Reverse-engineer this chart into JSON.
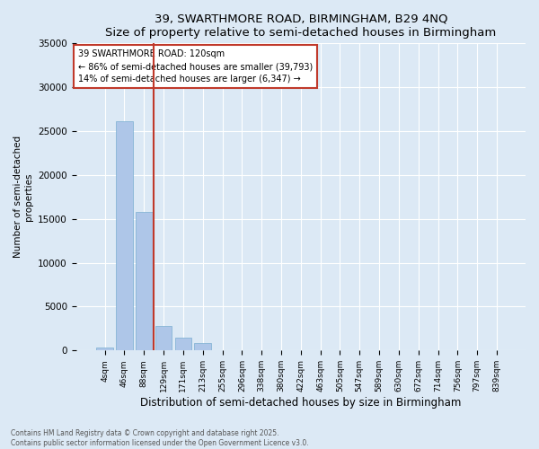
{
  "title1": "39, SWARTHMORE ROAD, BIRMINGHAM, B29 4NQ",
  "title2": "Size of property relative to semi-detached houses in Birmingham",
  "xlabel": "Distribution of semi-detached houses by size in Birmingham",
  "ylabel": "Number of semi-detached\nproperties",
  "categories": [
    "4sqm",
    "46sqm",
    "88sqm",
    "129sqm",
    "171sqm",
    "213sqm",
    "255sqm",
    "296sqm",
    "338sqm",
    "380sqm",
    "422sqm",
    "463sqm",
    "505sqm",
    "547sqm",
    "589sqm",
    "630sqm",
    "672sqm",
    "714sqm",
    "756sqm",
    "797sqm",
    "839sqm"
  ],
  "values": [
    300,
    26100,
    15800,
    2800,
    1500,
    900,
    0,
    0,
    0,
    0,
    0,
    0,
    0,
    0,
    0,
    0,
    0,
    0,
    0,
    0,
    0
  ],
  "bar_color": "#aec6e8",
  "bar_edge_color": "#7aaed0",
  "vline_position": 2.5,
  "vline_color": "#c0392b",
  "annotation_title": "39 SWARTHMORE ROAD: 120sqm",
  "annotation_line1": "← 86% of semi-detached houses are smaller (39,793)",
  "annotation_line2": "14% of semi-detached houses are larger (6,347) →",
  "annotation_box_color": "#c0392b",
  "ylim": [
    0,
    35000
  ],
  "yticks": [
    0,
    5000,
    10000,
    15000,
    20000,
    25000,
    30000,
    35000
  ],
  "bg_color": "#dce9f5",
  "plot_bg_color": "#dce9f5",
  "footnote1": "Contains HM Land Registry data © Crown copyright and database right 2025.",
  "footnote2": "Contains public sector information licensed under the Open Government Licence v3.0."
}
